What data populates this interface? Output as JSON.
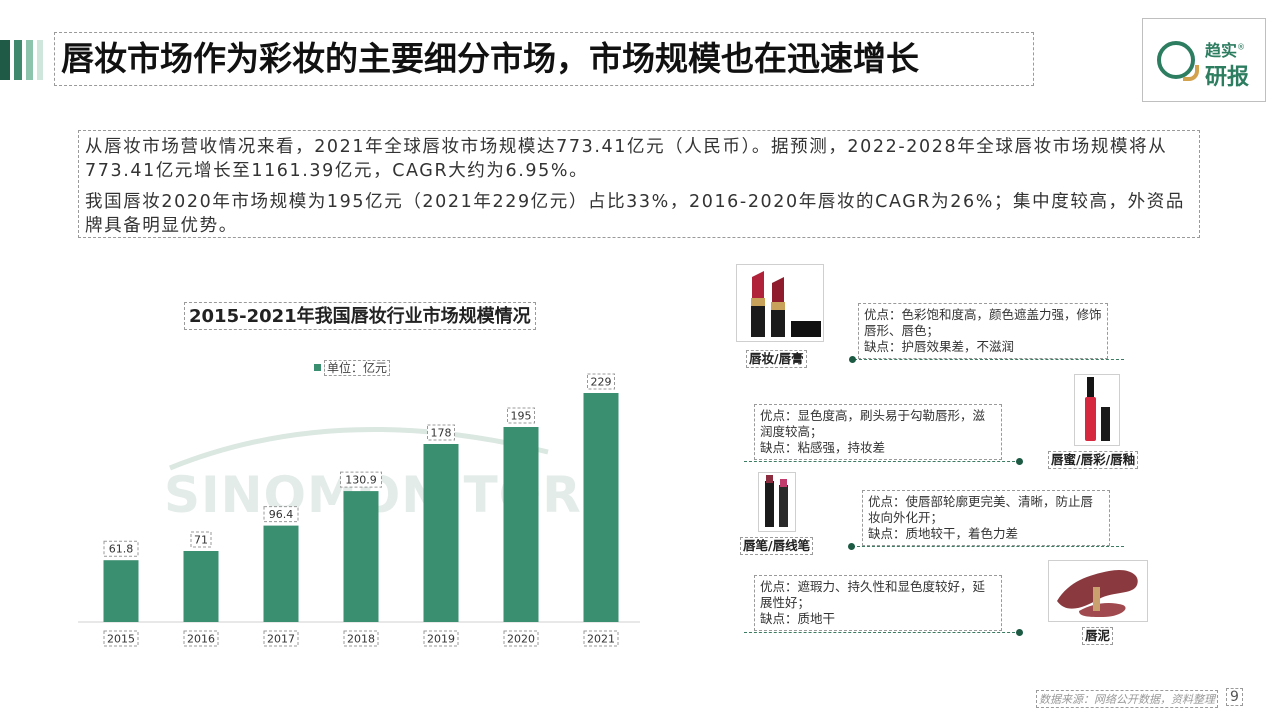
{
  "header": {
    "title": "唇妆市场作为彩妆的主要细分市场，市场规模也在迅速增长",
    "logo_line1": "趋实",
    "logo_line2": "研报",
    "logo_mark": "®"
  },
  "summary": {
    "p1": "从唇妆市场营收情况来看，2021年全球唇妆市场规模达773.41亿元（人民币）。据预测，2022-2028年全球唇妆市场规模将从773.41亿元增长至1161.39亿元，CAGR大约为6.95%。",
    "p2": "我国唇妆2020年市场规模为195亿元（2021年229亿元）占比33%，2016-2020年唇妆的CAGR为26%；集中度较高，外资品牌具备明显优势。"
  },
  "chart_data": {
    "type": "bar",
    "title": "2015-2021年我国唇妆行业市场规模情况",
    "legend": "单位：亿元",
    "categories": [
      "2015",
      "2016",
      "2017",
      "2018",
      "2019",
      "2020",
      "2021"
    ],
    "values": [
      61.8,
      71,
      96.4,
      130.9,
      178,
      195,
      229
    ],
    "value_labels": [
      "61.8",
      "71",
      "96.4",
      "130.9",
      "178",
      "195",
      "229"
    ],
    "ylim": [
      0,
      240
    ],
    "color": "#3a8f70",
    "watermark": "SINOMONITOR"
  },
  "products": [
    {
      "name": "唇妆/唇膏",
      "pros": "优点：色彩饱和度高，颜色遮盖力强，修饰唇形、唇色；",
      "cons": "缺点：护唇效果差，不滋润"
    },
    {
      "name": "唇蜜/唇彩/唇釉",
      "pros": "优点：显色度高，刷头易于勾勒唇形，滋润度较高；",
      "cons": "缺点：粘感强，持妆差"
    },
    {
      "name": "唇笔/唇线笔",
      "pros": "优点：使唇部轮廓更完美、清晰，防止唇妆向外化开；",
      "cons": "缺点：质地较干，着色力差"
    },
    {
      "name": "唇泥",
      "pros": "优点：遮瑕力、持久性和显色度较好，延展性好；",
      "cons": "缺点：质地干"
    }
  ],
  "footer": {
    "source": "数据来源：网络公开数据，资料整理",
    "page": "9"
  }
}
